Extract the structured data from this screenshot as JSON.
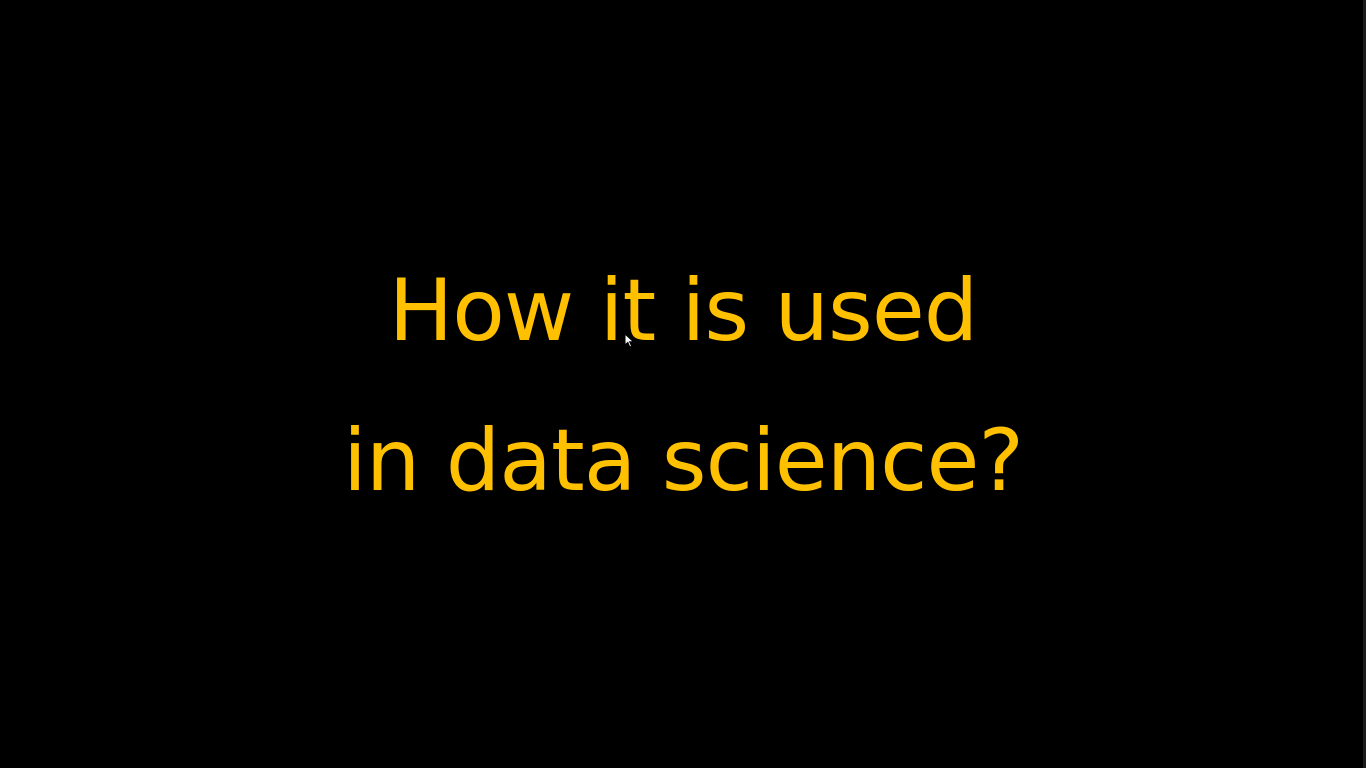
{
  "slide": {
    "title_lines": [
      "How it is used",
      "in data science?"
    ],
    "text_color": "#FFC000",
    "background_color": "#000000"
  },
  "cursor": {
    "icon": "mouse-pointer-icon"
  }
}
